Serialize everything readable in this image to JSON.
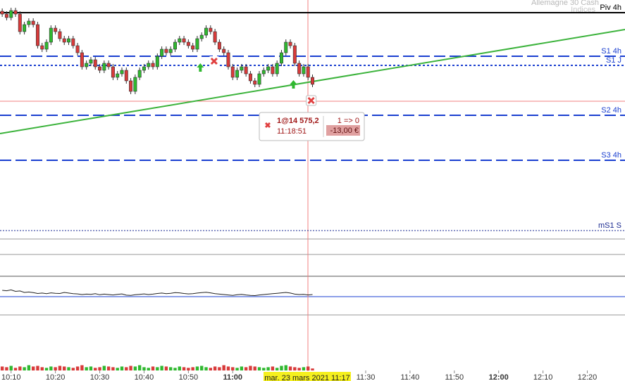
{
  "header": {
    "instrument": "Allemagne 30 Cash",
    "market": "Indices"
  },
  "chart_data": {
    "type": "candlestick",
    "xlim": [
      607.5,
      748.5
    ],
    "ylim": [
      14521,
      14606
    ],
    "xticks": [
      {
        "value": 610,
        "label": "10:10"
      },
      {
        "value": 620,
        "label": "10:20"
      },
      {
        "value": 630,
        "label": "10:30"
      },
      {
        "value": 640,
        "label": "10:40"
      },
      {
        "value": 650,
        "label": "10:50"
      },
      {
        "value": 660,
        "label": "11:00"
      },
      {
        "value": 690,
        "label": "11:30"
      },
      {
        "value": 700,
        "label": "11:40"
      },
      {
        "value": 710,
        "label": "11:50"
      },
      {
        "value": 720,
        "label": "12:00"
      },
      {
        "value": 730,
        "label": "12:10"
      },
      {
        "value": 740,
        "label": "12:20"
      }
    ],
    "bold_ticks": [
      "11:00",
      "12:00"
    ],
    "up_color": "#2fb82f",
    "down_color": "#d83a3a",
    "x": [
      608,
      609,
      610,
      611,
      612,
      613,
      614,
      615,
      616,
      617,
      618,
      619,
      620,
      621,
      622,
      623,
      624,
      625,
      626,
      627,
      628,
      629,
      630,
      631,
      632,
      633,
      634,
      635,
      636,
      637,
      638,
      639,
      640,
      641,
      642,
      643,
      644,
      645,
      646,
      647,
      648,
      649,
      650,
      651,
      652,
      653,
      654,
      655,
      656,
      657,
      658,
      659,
      660,
      661,
      662,
      663,
      664,
      665,
      666,
      667,
      668,
      669,
      670,
      671,
      672,
      673,
      674,
      675,
      676,
      677,
      678
    ],
    "candles": {
      "open": [
        14602,
        14601,
        14599.75,
        14602.25,
        14601,
        14594.75,
        14597.25,
        14598.5,
        14597.25,
        14589.75,
        14588.5,
        14591,
        14596,
        14594.75,
        14592.25,
        14591,
        14592.25,
        14589.75,
        14587.25,
        14582.25,
        14583.5,
        14584.75,
        14582.25,
        14581,
        14583.5,
        14582.25,
        14578.5,
        14579.75,
        14581,
        14577.25,
        14573.5,
        14578.5,
        14581,
        14582.25,
        14583.5,
        14582.25,
        14586,
        14588.5,
        14587.25,
        14588.5,
        14591,
        14592.25,
        14591,
        14589.75,
        14588.5,
        14592.25,
        14593.5,
        14596,
        14594.75,
        14591,
        14588.5,
        14587.25,
        14582.25,
        14578.5,
        14581,
        14582.25,
        14579.75,
        14577.25,
        14576,
        14579.75,
        14581,
        14582.25,
        14579.75,
        14583.5,
        14587.25,
        14591,
        14589.75,
        14583.5,
        14579.75,
        14582.25,
        14578.5
      ],
      "high": [
        14603,
        14602,
        14603.25,
        14603.25,
        14602,
        14598.25,
        14599.5,
        14599.5,
        14598.25,
        14590.75,
        14592,
        14597,
        14597,
        14595.75,
        14593.25,
        14593.25,
        14593.25,
        14590.75,
        14588.25,
        14584.5,
        14585.75,
        14585.75,
        14583.25,
        14584.5,
        14584.5,
        14583.25,
        14580.75,
        14582,
        14582,
        14578.25,
        14579.5,
        14582,
        14583.25,
        14584.5,
        14584.5,
        14587,
        14589.5,
        14589.5,
        14589.5,
        14592,
        14593.25,
        14593.25,
        14592,
        14590.75,
        14593.25,
        14594.5,
        14597,
        14597,
        14595.75,
        14592,
        14589.5,
        14588.25,
        14583.25,
        14582,
        14583.25,
        14583.25,
        14580.75,
        14578.25,
        14580.75,
        14582,
        14583.25,
        14583.25,
        14584.5,
        14588.25,
        14592,
        14592,
        14590.75,
        14584.5,
        14583.25,
        14583.25,
        14579.5
      ],
      "low": [
        14600,
        14598.75,
        14598.75,
        14600,
        14593.75,
        14593.75,
        14596.25,
        14596.25,
        14588.75,
        14587.5,
        14587.5,
        14590,
        14593.75,
        14591.25,
        14590,
        14590,
        14588.75,
        14586.25,
        14581.25,
        14581.25,
        14582.5,
        14581.25,
        14580,
        14580,
        14581.25,
        14577.5,
        14577.5,
        14578.75,
        14576.25,
        14572.5,
        14572.5,
        14577.5,
        14580,
        14581.25,
        14581.25,
        14581.25,
        14585,
        14586.25,
        14586.25,
        14587.5,
        14590,
        14590,
        14588.75,
        14587.5,
        14587.5,
        14591.25,
        14592.5,
        14593.75,
        14590,
        14587.5,
        14586.25,
        14581.25,
        14577.5,
        14577.5,
        14580,
        14578.75,
        14576.25,
        14575,
        14575,
        14578.75,
        14580,
        14578.75,
        14578.75,
        14582.5,
        14586.25,
        14588.75,
        14582.5,
        14578.75,
        14578.75,
        14577.5,
        14575
      ],
      "close": [
        14601,
        14599.75,
        14602.25,
        14601,
        14594.75,
        14597.25,
        14598.5,
        14597.25,
        14589.75,
        14588.5,
        14591,
        14596,
        14594.75,
        14592.25,
        14591,
        14592.25,
        14589.75,
        14587.25,
        14582.25,
        14583.5,
        14584.75,
        14582.25,
        14581,
        14583.5,
        14582.25,
        14578.5,
        14579.75,
        14581,
        14577.25,
        14573.5,
        14578.5,
        14581,
        14582.25,
        14583.5,
        14582.25,
        14586,
        14588.5,
        14587.25,
        14588.5,
        14591,
        14592.25,
        14591,
        14589.75,
        14588.5,
        14592.25,
        14593.5,
        14596,
        14594.75,
        14591,
        14588.5,
        14587.25,
        14582.25,
        14578.5,
        14581,
        14582.25,
        14579.75,
        14577.25,
        14576,
        14579.75,
        14581,
        14582.25,
        14579.75,
        14583.5,
        14587.25,
        14591,
        14589.75,
        14583.5,
        14579.75,
        14582.25,
        14578.5,
        14576
      ]
    },
    "levels": [
      {
        "label": "Piv 4h",
        "value": 14601.5,
        "color": "#000000",
        "style": "solid"
      },
      {
        "label": "S1 4h",
        "value": 14586,
        "color": "#1a3fd0",
        "style": "dashed"
      },
      {
        "label": "S1 J",
        "value": 14582.75,
        "color": "#1a3fd0",
        "style": "dotted"
      },
      {
        "label": "S2 4h",
        "value": 14565,
        "color": "#1a3fd0",
        "style": "dashed"
      },
      {
        "label": "S3 4h",
        "value": 14549,
        "color": "#1a3fd0",
        "style": "dashed"
      },
      {
        "label": "mS1 S",
        "value": 14524,
        "color": "#1a2a90",
        "style": "fine"
      }
    ],
    "trendline": {
      "color": "#3cb33c",
      "x": [
        607.5,
        748.5
      ],
      "values": [
        14558.5,
        14595.5
      ]
    },
    "entries": {
      "x": [
        652.7,
        673.7
      ],
      "values": [
        14582,
        14576
      ]
    },
    "exits": {
      "x": [
        655.8,
        677.7
      ],
      "values": [
        14584.25,
        14570.25
      ]
    },
    "oscillator": {
      "ylim": [
        0,
        100
      ],
      "values": [
        60,
        58,
        62,
        55,
        57,
        50,
        52,
        49,
        45,
        47,
        44,
        48,
        46,
        45,
        50,
        47,
        44,
        43,
        40,
        42,
        41,
        44,
        39,
        42,
        40,
        38,
        41,
        43,
        37,
        36,
        39,
        41,
        43,
        40,
        42,
        45,
        47,
        44,
        46,
        49,
        48,
        45,
        43,
        44,
        47,
        49,
        51,
        48,
        44,
        42,
        40,
        38,
        36,
        39,
        41,
        38,
        36,
        35,
        38,
        40,
        42,
        44,
        46,
        48,
        50,
        47,
        42,
        40,
        41,
        38,
        40
      ]
    },
    "volume": {
      "ylim": [
        0,
        30
      ],
      "values": [
        6,
        5,
        7,
        4,
        6,
        5,
        8,
        6,
        7,
        5,
        4,
        6,
        5,
        7,
        6,
        5,
        4,
        6,
        8,
        5,
        6,
        4,
        5,
        7,
        6,
        5,
        4,
        6,
        5,
        7,
        6,
        8,
        5,
        4,
        6,
        5,
        7,
        6,
        5,
        4,
        6,
        5,
        4,
        5,
        6,
        7,
        5,
        4,
        6,
        5,
        8,
        6,
        5,
        4,
        6,
        5,
        7,
        6,
        5,
        4,
        5,
        6,
        4,
        7,
        8,
        6,
        5,
        4,
        5,
        6,
        3
      ]
    },
    "cursor_label": "mar. 23 mars 2021 11:17"
  },
  "tooltip": {
    "order": "1@14 575,2",
    "time": "11:18:51",
    "position": "1 => 0",
    "pnl": "-13,00 €"
  }
}
